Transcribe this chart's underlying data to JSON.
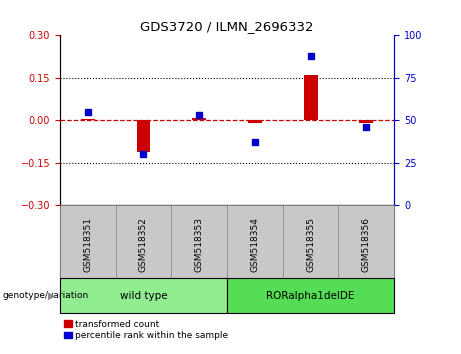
{
  "title": "GDS3720 / ILMN_2696332",
  "samples": [
    "GSM518351",
    "GSM518352",
    "GSM518353",
    "GSM518354",
    "GSM518355",
    "GSM518356"
  ],
  "red_values": [
    0.005,
    -0.11,
    0.01,
    -0.01,
    0.16,
    -0.01
  ],
  "blue_values_pct": [
    55,
    30,
    53,
    37,
    88,
    46
  ],
  "ylim_left": [
    -0.3,
    0.3
  ],
  "ylim_right": [
    0,
    100
  ],
  "yticks_left": [
    -0.3,
    -0.15,
    0.0,
    0.15,
    0.3
  ],
  "yticks_right": [
    0,
    25,
    50,
    75,
    100
  ],
  "groups": [
    {
      "label": "wild type",
      "samples": [
        0,
        1,
        2
      ],
      "color": "#90EE90"
    },
    {
      "label": "RORalpha1delDE",
      "samples": [
        3,
        4,
        5
      ],
      "color": "#55DD55"
    }
  ],
  "group_label": "genotype/variation",
  "legend_red": "transformed count",
  "legend_blue": "percentile rank within the sample",
  "red_color": "#CC0000",
  "blue_color": "#0000CC",
  "bar_width": 0.25,
  "plot_bg": "#FFFFFF",
  "sample_label_bg": "#C8C8C8",
  "sample_label_border": "#888888"
}
